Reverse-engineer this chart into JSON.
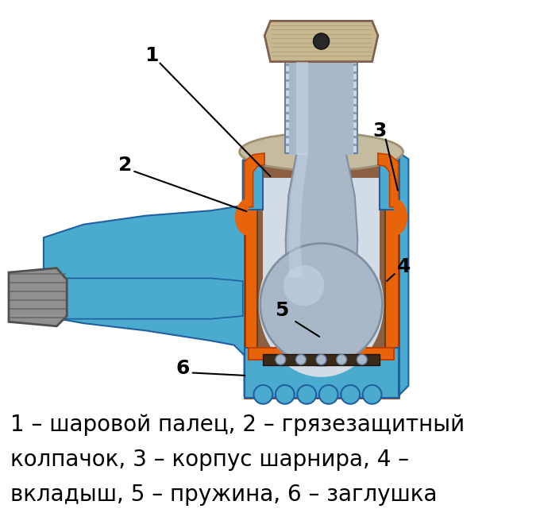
{
  "fig_width": 6.8,
  "fig_height": 6.65,
  "dpi": 100,
  "background_color": "#ffffff",
  "caption_line1": "1 – шаровой палец, 2 – грязезащитный",
  "caption_line2": "колпачок, 3 – корпус шарнира, 4 –",
  "caption_line3": "вкладыш, 5 – пружина, 6 – заглушка",
  "caption_fontsize": 20,
  "label_fontsize": 18,
  "orange_color": "#E8640A",
  "blue_color": "#4AABCF",
  "steel_color": "#A8B8C8",
  "steel_dark": "#7888A0",
  "steel_light": "#C8D8E8",
  "brown_color": "#8B6040",
  "dark_color": "#202020",
  "nut_color": "#C8B890",
  "nut_edge": "#806050",
  "dark_edge": "#404040"
}
